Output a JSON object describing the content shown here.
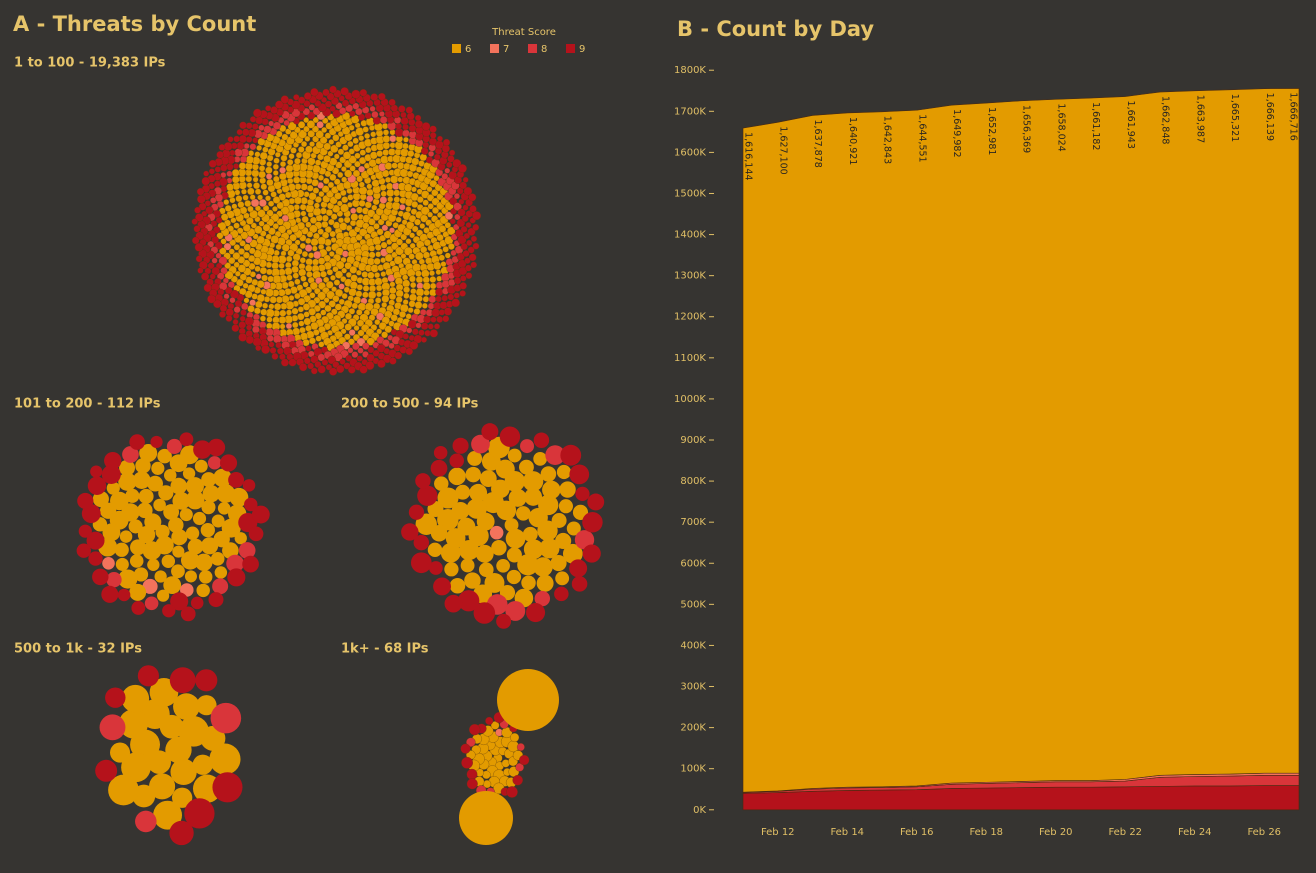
{
  "chart_data": [
    {
      "type": "packed-bubble",
      "title": "A - Threats by Count",
      "legend_title": "Threat Score",
      "series": [
        {
          "name": "6",
          "color": "#e39b00"
        },
        {
          "name": "7",
          "color": "#f3735c"
        },
        {
          "name": "8",
          "color": "#d9353a"
        },
        {
          "name": "9",
          "color": "#b5121b"
        }
      ],
      "groups": [
        "1 to 100 - 19,383 IPs",
        "101 to 200 - 112 IPs",
        "200 to 500 - 94 IPs",
        "500 to 1k - 32 IPs",
        "1k+ - 68 IPs"
      ]
    },
    {
      "type": "stacked-area",
      "title": "B - Count by Day",
      "categories": [
        null,
        "Feb 12",
        null,
        "Feb 14",
        null,
        "Feb 16",
        null,
        "Feb 18",
        null,
        "Feb 20",
        null,
        "Feb 22",
        null,
        "Feb 24",
        null,
        "Feb 26",
        null
      ],
      "series": [
        {
          "name": "9",
          "color": "#b5121b",
          "values": [
            40000,
            42000,
            45000,
            47000,
            48000,
            49000,
            52000,
            53000,
            54000,
            55000,
            55000,
            56000,
            57000,
            58000,
            58000,
            59000,
            59000
          ]
        },
        {
          "name": "8",
          "color": "#d9353a",
          "values": [
            2000,
            3000,
            5000,
            6000,
            6000,
            7000,
            10000,
            11000,
            12000,
            13000,
            13000,
            14000,
            22000,
            23000,
            24000,
            25000,
            25000
          ]
        },
        {
          "name": "7",
          "color": "#f3735c",
          "values": [
            1000,
            1000,
            2000,
            2000,
            2000,
            2000,
            3000,
            3000,
            3000,
            3000,
            3000,
            4000,
            5000,
            5000,
            5000,
            5000,
            5000
          ]
        },
        {
          "name": "6",
          "color": "#e39b00",
          "values": [
            1616144,
            1627100,
            1637878,
            1640921,
            1642843,
            1644551,
            1649982,
            1652981,
            1656369,
            1658024,
            1661182,
            1661943,
            1662848,
            1663987,
            1665321,
            1666139,
            1666716
          ],
          "value_labels": [
            "1,616,144",
            "1,627,100",
            "1,637,878",
            "1,640,921",
            "1,642,843",
            "1,644,551",
            "1,649,982",
            "1,652,981",
            "1,656,369",
            "1,658,024",
            "1,661,182",
            "1,661,943",
            "1,662,848",
            "1,663,987",
            "1,665,321",
            "1,666,139",
            "1,666,716"
          ]
        }
      ],
      "ylim": [
        -20000,
        1820000
      ],
      "yticks": [
        {
          "value": 0,
          "label": "0K"
        },
        {
          "value": 100000,
          "label": "100K"
        },
        {
          "value": 200000,
          "label": "200K"
        },
        {
          "value": 300000,
          "label": "300K"
        },
        {
          "value": 400000,
          "label": "400K"
        },
        {
          "value": 500000,
          "label": "500K"
        },
        {
          "value": 600000,
          "label": "600K"
        },
        {
          "value": 700000,
          "label": "700K"
        },
        {
          "value": 800000,
          "label": "800K"
        },
        {
          "value": 900000,
          "label": "900K"
        },
        {
          "value": 1000000,
          "label": "1000K"
        },
        {
          "value": 1100000,
          "label": "1100K"
        },
        {
          "value": 1200000,
          "label": "1200K"
        },
        {
          "value": 1300000,
          "label": "1300K"
        },
        {
          "value": 1400000,
          "label": "1400K"
        },
        {
          "value": 1500000,
          "label": "1500K"
        },
        {
          "value": 1600000,
          "label": "1600K"
        },
        {
          "value": 1700000,
          "label": "1700K"
        },
        {
          "value": 1800000,
          "label": "1800K"
        }
      ]
    }
  ]
}
